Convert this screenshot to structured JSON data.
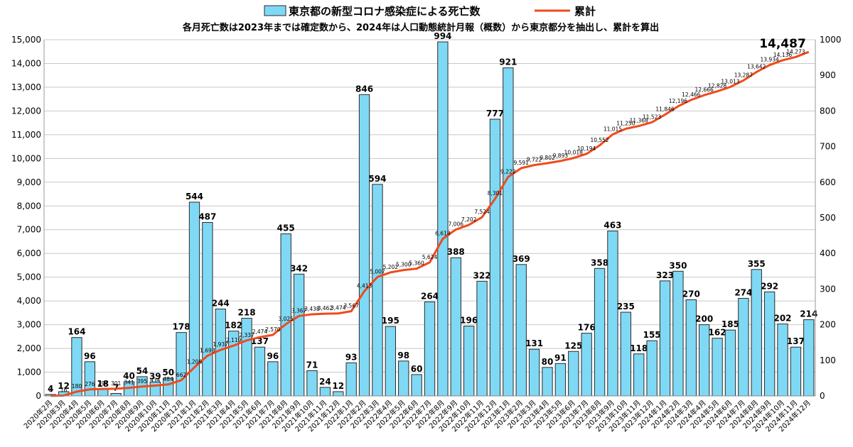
{
  "legend": {
    "bar_label": "東京都の新型コロナ感染症による死亡数",
    "line_label": "累計"
  },
  "subtitle": "各月死亡数は2023年までは確定数から、2024年は人口動態統計月報（概数）から東京都分を抽出し、累計を算出",
  "colors": {
    "bar_fill": "#7fd9f5",
    "bar_stroke": "#2a2a2a",
    "line": "#f04a1c",
    "grid": "#c8c8c8"
  },
  "chart_data": {
    "type": "bar",
    "categories": [
      "2020年2月",
      "2020年3月",
      "2020年4月",
      "2020年5月",
      "2020年6月",
      "2020年7月",
      "2020年8月",
      "2020年9月",
      "2020年10月",
      "2020年11月",
      "2020年12月",
      "2021年1月",
      "2021年2月",
      "2021年3月",
      "2021年4月",
      "2021年5月",
      "2021年6月",
      "2021年7月",
      "2021年8月",
      "2021年9月",
      "2021年10月",
      "2021年11月",
      "2021年12月",
      "2022年1月",
      "2022年2月",
      "2022年3月",
      "2022年4月",
      "2022年5月",
      "2022年6月",
      "2022年7月",
      "2022年8月",
      "2022年9月",
      "2022年10月",
      "2022年11月",
      "2022年12月",
      "2023年1月",
      "2023年2月",
      "2023年3月",
      "2023年4月",
      "2023年5月",
      "2023年6月",
      "2023年7月",
      "2023年8月",
      "2023年9月",
      "2023年10月",
      "2023年11月",
      "2023年12月",
      "2024年1月",
      "2024年2月",
      "2024年3月",
      "2024年4月",
      "2024年5月",
      "2024年6月",
      "2024年7月",
      "2024年8月",
      "2024年9月",
      "2024年10月",
      "2024年11月",
      "2024年12月"
    ],
    "series": [
      {
        "name": "東京都の新型コロナ感染症による死亡数",
        "axis": "right",
        "values": [
          4,
          12,
          164,
          96,
          18,
          7,
          40,
          54,
          39,
          50,
          178,
          544,
          487,
          244,
          182,
          218,
          137,
          96,
          455,
          342,
          71,
          24,
          12,
          93,
          846,
          594,
          195,
          98,
          60,
          264,
          994,
          388,
          196,
          322,
          777,
          921,
          369,
          131,
          80,
          91,
          125,
          176,
          358,
          463,
          235,
          118,
          155,
          323,
          350,
          270,
          200,
          162,
          185,
          274,
          355,
          292,
          202,
          137,
          214
        ],
        "labels": [
          "4",
          "12",
          "164",
          "96",
          "18",
          "7",
          "40",
          "54",
          "39",
          "50",
          "178",
          "544",
          "487",
          "244",
          "182",
          "218",
          "137",
          "96",
          "455",
          "342",
          "71",
          "24",
          "12",
          "93",
          "846",
          "594",
          "195",
          "98",
          "60",
          "264",
          "994",
          "388",
          "196",
          "322",
          "777",
          "921",
          "369",
          "131",
          "80",
          "91",
          "125",
          "176",
          "358",
          "463",
          "235",
          "118",
          "155",
          "323",
          "350",
          "270",
          "200",
          "162",
          "185",
          "274",
          "355",
          "292",
          "202",
          "137",
          "214"
        ]
      },
      {
        "name": "累計",
        "axis": "left",
        "values": [
          4,
          16,
          180,
          276,
          294,
          301,
          341,
          395,
          434,
          484,
          662,
          1206,
          1693,
          1937,
          2119,
          2337,
          2474,
          2570,
          3025,
          3367,
          3438,
          3462,
          3474,
          3567,
          4413,
          5007,
          5202,
          5300,
          5360,
          5624,
          6618,
          7006,
          7202,
          7524,
          8301,
          9222,
          9591,
          9722,
          9802,
          9893,
          10018,
          10194,
          10552,
          11015,
          11250,
          11368,
          11523,
          11846,
          12196,
          12466,
          12666,
          12828,
          13013,
          13287,
          13642,
          13934,
          14136,
          14273,
          14487
        ],
        "labels": [
          "4",
          "16",
          "180",
          "276",
          "294",
          "301",
          "341",
          "395",
          "434",
          "484",
          "662",
          "1,206",
          "1,693",
          "1,937",
          "2,119",
          "2,337",
          "2,474",
          "2,570",
          "3,025",
          "3,367",
          "3,438",
          "3,462",
          "3,474",
          "3,567",
          "4,413",
          "5,007",
          "5,202",
          "5,300",
          "5,360",
          "5,624",
          "6,618",
          "7,006",
          "7,202",
          "7,524",
          "8,301",
          "9,222",
          "9,591",
          "9,722",
          "9,802",
          "9,893",
          "10,018",
          "10,194",
          "10,552",
          "11,015",
          "11,250",
          "11,368",
          "11,523",
          "11,846",
          "12,196",
          "12,466",
          "12,666",
          "12,828",
          "13,013",
          "13,287",
          "13,642",
          "13,934",
          "14,136",
          "14,273",
          "14,487"
        ]
      }
    ],
    "left_axis": {
      "ylim": [
        0,
        15000
      ],
      "ticks": [
        "0",
        "1,000",
        "2,000",
        "3,000",
        "4,000",
        "5,000",
        "6,000",
        "7,000",
        "8,000",
        "9,000",
        "10,000",
        "11,000",
        "12,000",
        "13,000",
        "14,000",
        "15,000"
      ]
    },
    "right_axis": {
      "ylim": [
        0,
        1000
      ],
      "ticks": [
        "0",
        "100",
        "200",
        "300",
        "400",
        "500",
        "600",
        "700",
        "800",
        "900",
        "1000"
      ]
    },
    "grid": true,
    "legend_position": "top"
  }
}
